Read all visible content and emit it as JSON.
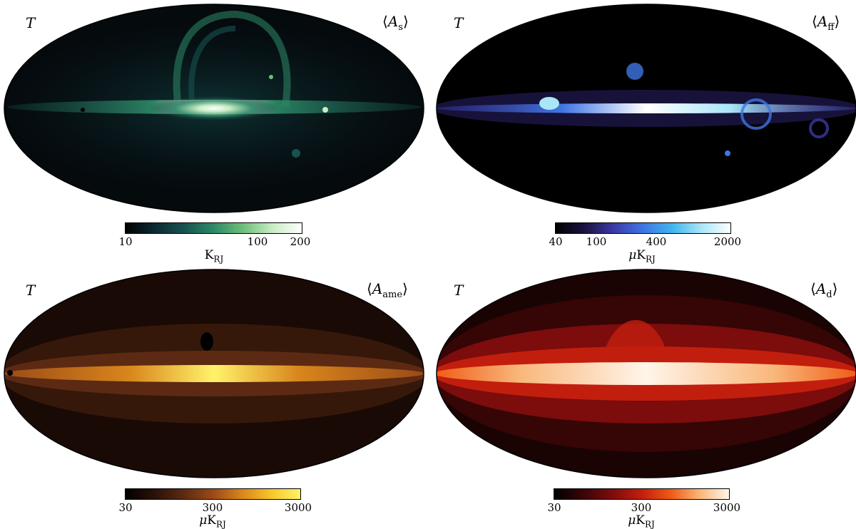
{
  "panels": [
    {
      "stokes": "T",
      "component": {
        "symbol": "A",
        "subscript": "s"
      },
      "colorbar": {
        "ticks": [
          "10",
          "100",
          "200"
        ],
        "unit_prefix": "",
        "unit": "K",
        "unit_sub": "RJ",
        "colors": [
          "#000000",
          "#0b2a33",
          "#17524f",
          "#2e8a67",
          "#6fbe79",
          "#c8ecc5",
          "#ffffff"
        ]
      },
      "map_style": "synchrotron"
    },
    {
      "stokes": "T",
      "component": {
        "symbol": "A",
        "subscript": "ff"
      },
      "colorbar": {
        "ticks": [
          "40",
          "100",
          "400",
          "2000"
        ],
        "unit_prefix": "μ",
        "unit": "K",
        "unit_sub": "RJ",
        "colors": [
          "#000000",
          "#1a1440",
          "#3b3aa8",
          "#3f76e3",
          "#41b4ee",
          "#a9e6f7",
          "#ffffff"
        ]
      },
      "map_style": "freefree"
    },
    {
      "stokes": "T",
      "component": {
        "symbol": "A",
        "subscript": "ame"
      },
      "colorbar": {
        "ticks": [
          "30",
          "300",
          "3000"
        ],
        "unit_prefix": "μ",
        "unit": "K",
        "unit_sub": "RJ",
        "colors": [
          "#000000",
          "#2b1208",
          "#5c2a12",
          "#9a4a17",
          "#d9861c",
          "#f7c62a",
          "#fff36a"
        ]
      },
      "map_style": "ame"
    },
    {
      "stokes": "T",
      "component": {
        "symbol": "A",
        "subscript": "d"
      },
      "colorbar": {
        "ticks": [
          "30",
          "300",
          "3000"
        ],
        "unit_prefix": "μ",
        "unit": "K",
        "unit_sub": "RJ",
        "colors": [
          "#000000",
          "#3a0606",
          "#7d0c0c",
          "#c21e0e",
          "#ef5a14",
          "#f9b77a",
          "#fff5ea"
        ]
      },
      "map_style": "dust"
    }
  ]
}
